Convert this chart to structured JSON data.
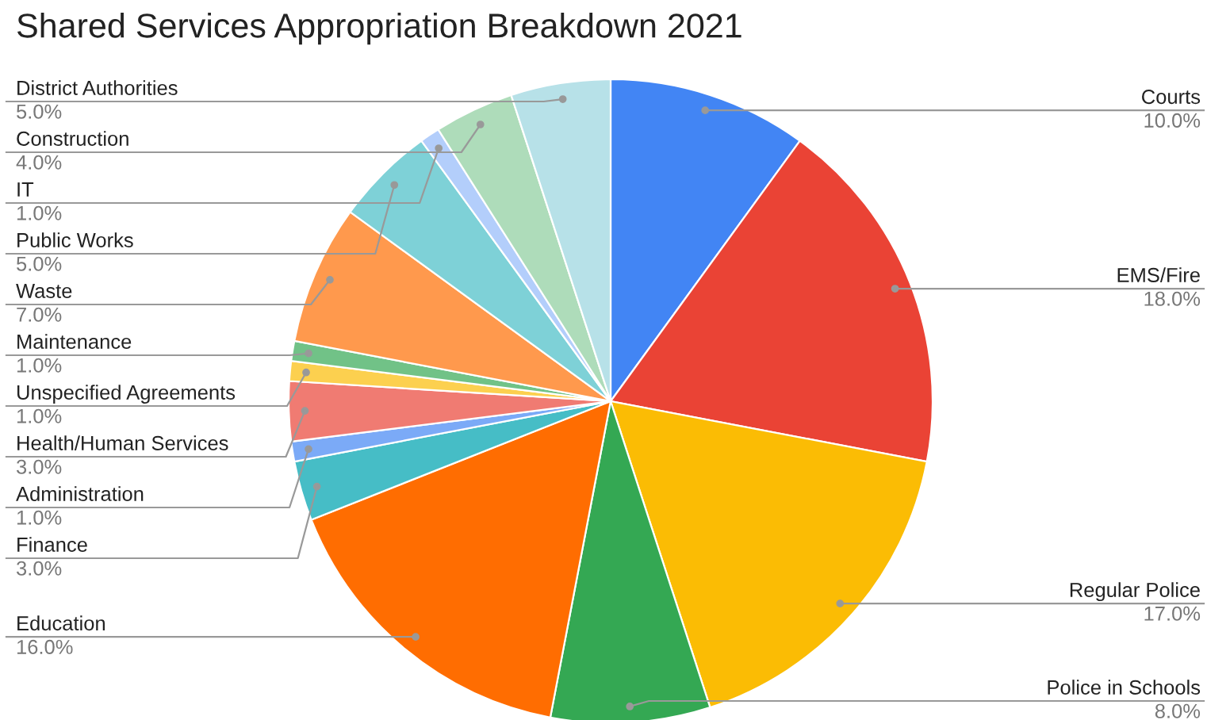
{
  "chart_data": {
    "type": "pie",
    "title": "Shared Services Appropriation Breakdown 2021",
    "categories": [
      "Courts",
      "EMS/Fire",
      "Regular Police",
      "Police in Schools",
      "Education",
      "Finance",
      "Administration",
      "Health/Human Services",
      "Unspecified Agreements",
      "Maintenance",
      "Waste",
      "Public Works",
      "IT",
      "Construction",
      "District Authorities"
    ],
    "values": [
      10,
      18,
      17,
      8,
      16,
      3,
      1,
      3,
      1,
      1,
      7,
      5,
      1,
      4,
      5
    ],
    "colors": [
      "#4285f4",
      "#ea4335",
      "#fbbc04",
      "#34a853",
      "#ff6d01",
      "#46bdc6",
      "#7baaf7",
      "#f07b72",
      "#fcd04f",
      "#71c287",
      "#ff994d",
      "#7ed1d7",
      "#b3cefb",
      "#aedcba",
      "#b7e1e8"
    ],
    "value_labels": [
      "10.0%",
      "18.0%",
      "17.0%",
      "8.0%",
      "16.0%",
      "3.0%",
      "1.0%",
      "3.0%",
      "1.0%",
      "1.0%",
      "7.0%",
      "5.0%",
      "1.0%",
      "4.0%",
      "5.0%"
    ]
  }
}
